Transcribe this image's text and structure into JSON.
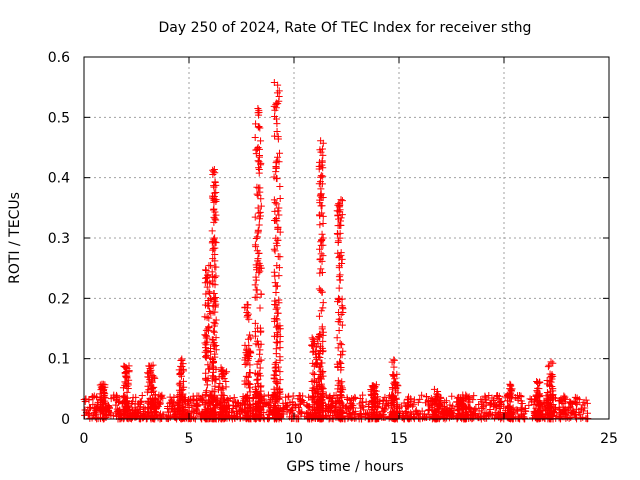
{
  "chart_data": {
    "type": "scatter",
    "title": "Day 250 of 2024, Rate Of TEC Index for receiver sthg",
    "xlabel": "GPS time / hours",
    "ylabel": "ROTI / TECUs",
    "xlim": [
      0,
      25
    ],
    "ylim": [
      0,
      0.6
    ],
    "xticks": [
      "0",
      "5",
      "10",
      "15",
      "20",
      "25"
    ],
    "yticks": [
      "0",
      "0.1",
      "0.2",
      "0.3",
      "0.4",
      "0.5",
      "0.6"
    ],
    "xtick_values": [
      0,
      5,
      10,
      15,
      20,
      25
    ],
    "ytick_values": [
      0,
      0.1,
      0.2,
      0.3,
      0.4,
      0.5,
      0.6
    ],
    "grid": true,
    "marker": "plus",
    "color": "#ff0000",
    "series": [
      {
        "name": "ROTI",
        "note": "Dense background band of ROTI ~0.0-0.04 across 0-24 h, with enhancements listed below",
        "background_band": {
          "x_range": [
            0,
            24
          ],
          "y_range": [
            0,
            0.04
          ]
        },
        "bursts": [
          {
            "x_center": 0.9,
            "x_width": 0.3,
            "y_max": 0.065
          },
          {
            "x_center": 2.0,
            "x_width": 0.3,
            "y_max": 0.095
          },
          {
            "x_center": 3.2,
            "x_width": 0.4,
            "y_max": 0.09
          },
          {
            "x_center": 4.6,
            "x_width": 0.3,
            "y_max": 0.105
          },
          {
            "x_center": 5.9,
            "x_width": 0.3,
            "y_max": 0.255
          },
          {
            "x_center": 6.2,
            "x_width": 0.2,
            "y_max": 0.415
          },
          {
            "x_center": 6.6,
            "x_width": 0.4,
            "y_max": 0.085
          },
          {
            "x_center": 7.8,
            "x_width": 0.3,
            "y_max": 0.19
          },
          {
            "x_center": 8.3,
            "x_width": 0.3,
            "y_max": 0.515
          },
          {
            "x_center": 9.2,
            "x_width": 0.3,
            "y_max": 0.56
          },
          {
            "x_center": 11.0,
            "x_width": 0.4,
            "y_max": 0.14
          },
          {
            "x_center": 11.3,
            "x_width": 0.2,
            "y_max": 0.47
          },
          {
            "x_center": 12.2,
            "x_width": 0.3,
            "y_max": 0.365
          },
          {
            "x_center": 13.8,
            "x_width": 0.3,
            "y_max": 0.06
          },
          {
            "x_center": 14.8,
            "x_width": 0.3,
            "y_max": 0.1
          },
          {
            "x_center": 16.8,
            "x_width": 0.4,
            "y_max": 0.05
          },
          {
            "x_center": 18.0,
            "x_width": 0.5,
            "y_max": 0.04
          },
          {
            "x_center": 20.3,
            "x_width": 0.3,
            "y_max": 0.06
          },
          {
            "x_center": 21.6,
            "x_width": 0.3,
            "y_max": 0.065
          },
          {
            "x_center": 22.2,
            "x_width": 0.3,
            "y_max": 0.095
          }
        ]
      }
    ]
  }
}
